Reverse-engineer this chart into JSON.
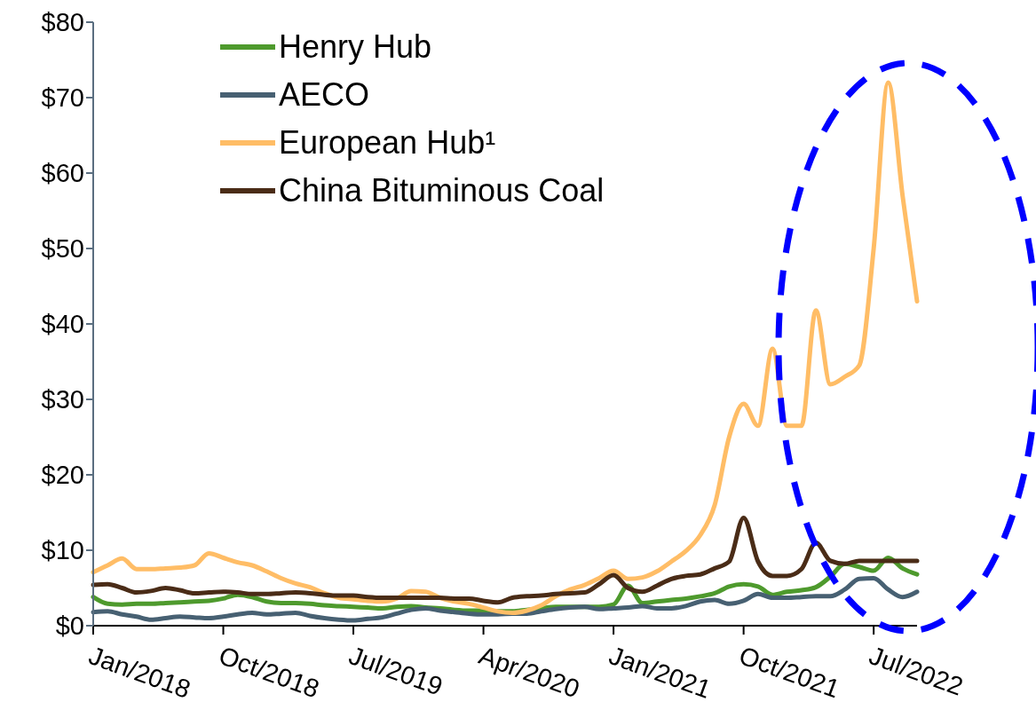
{
  "chart_data": {
    "type": "line",
    "categories": [
      "Jan/2018",
      null,
      null,
      null,
      null,
      null,
      null,
      null,
      null,
      "Oct/2018",
      null,
      null,
      null,
      null,
      null,
      null,
      null,
      null,
      "Jul/2019",
      null,
      null,
      null,
      null,
      null,
      null,
      null,
      null,
      "Apr/2020",
      null,
      null,
      null,
      null,
      null,
      null,
      null,
      null,
      "Jan/2021",
      null,
      null,
      null,
      null,
      null,
      null,
      null,
      null,
      "Oct/2021",
      null,
      null,
      null,
      null,
      null,
      null,
      null,
      null,
      "Jul/2022",
      null,
      null,
      null
    ],
    "series": [
      {
        "name": "Henry Hub",
        "color": "#4e9a2d",
        "values": [
          3.8,
          2.9,
          2.8,
          2.9,
          2.9,
          3.0,
          3.1,
          3.2,
          3.3,
          3.6,
          4.1,
          3.8,
          3.2,
          3.0,
          3.0,
          2.9,
          2.7,
          2.6,
          2.5,
          2.4,
          2.3,
          2.5,
          2.6,
          2.4,
          2.3,
          2.1,
          2.0,
          2.0,
          1.9,
          1.9,
          2.1,
          2.3,
          2.5,
          2.5,
          2.5,
          2.5,
          2.8,
          5.3,
          3.0,
          3.2,
          3.4,
          3.6,
          3.9,
          4.3,
          5.2,
          5.5,
          5.2,
          4.1,
          4.5,
          4.7,
          5.1,
          6.5,
          8.2,
          7.8,
          7.3,
          9.0,
          7.6,
          6.8
        ]
      },
      {
        "name": "AECO",
        "color": "#476072",
        "values": [
          1.8,
          1.9,
          1.5,
          1.2,
          0.8,
          1.0,
          1.2,
          1.1,
          1.0,
          1.2,
          1.5,
          1.7,
          1.5,
          1.6,
          1.7,
          1.3,
          1.0,
          0.8,
          0.7,
          0.9,
          1.1,
          1.6,
          2.1,
          2.3,
          2.0,
          1.8,
          1.6,
          1.5,
          1.5,
          1.6,
          1.6,
          1.9,
          2.2,
          2.4,
          2.5,
          2.2,
          2.3,
          2.4,
          2.6,
          2.3,
          2.3,
          2.6,
          3.2,
          3.4,
          2.9,
          3.3,
          4.2,
          3.7,
          3.7,
          3.8,
          3.9,
          3.9,
          4.8,
          6.2,
          6.3,
          4.8,
          3.8,
          4.5
        ]
      },
      {
        "name": "European Hub¹",
        "color": "#ffbd66",
        "values": [
          7.1,
          8.0,
          8.9,
          7.5,
          7.5,
          7.6,
          7.7,
          8.0,
          9.6,
          9.0,
          8.4,
          8.0,
          7.2,
          6.3,
          5.6,
          5.1,
          4.3,
          3.7,
          3.5,
          3.3,
          3.2,
          3.6,
          4.6,
          4.5,
          3.7,
          3.2,
          2.9,
          2.4,
          1.9,
          1.7,
          2.0,
          2.7,
          3.9,
          4.8,
          5.4,
          6.3,
          7.3,
          6.2,
          6.4,
          7.2,
          8.5,
          9.9,
          12.0,
          16.0,
          25.0,
          29.4,
          26.5,
          36.7,
          26.5,
          26.5,
          41.8,
          32.0,
          33.0,
          34.5,
          50.0,
          72.0,
          57.0,
          43.0
        ]
      },
      {
        "name": "China Bituminous Coal",
        "color": "#4a2c17",
        "values": [
          5.4,
          5.5,
          5.0,
          4.4,
          4.6,
          5.0,
          4.7,
          4.3,
          4.4,
          4.5,
          4.4,
          4.2,
          4.2,
          4.3,
          4.4,
          4.3,
          4.1,
          4.0,
          4.0,
          3.8,
          3.7,
          3.7,
          3.7,
          3.7,
          3.7,
          3.6,
          3.6,
          3.3,
          3.1,
          3.7,
          3.9,
          4.0,
          4.2,
          4.3,
          4.4,
          5.5,
          6.7,
          5.0,
          4.5,
          5.3,
          6.2,
          6.6,
          6.8,
          7.6,
          8.5,
          14.3,
          8.5,
          6.6,
          6.6,
          7.5,
          11.0,
          8.6,
          8.2,
          8.6,
          8.6,
          8.6,
          8.6,
          8.6
        ]
      }
    ],
    "ylim": [
      0,
      80
    ],
    "yticks": [
      {
        "value": 0,
        "label": "$0"
      },
      {
        "value": 10,
        "label": "$10"
      },
      {
        "value": 20,
        "label": "$20"
      },
      {
        "value": 30,
        "label": "$30"
      },
      {
        "value": 40,
        "label": "$40"
      },
      {
        "value": 50,
        "label": "$50"
      },
      {
        "value": 60,
        "label": "$60"
      },
      {
        "value": 70,
        "label": "$70"
      },
      {
        "value": 80,
        "label": "$80"
      }
    ],
    "grid": false,
    "legend": "top left",
    "marker": "none",
    "line_style": "solid"
  }
}
